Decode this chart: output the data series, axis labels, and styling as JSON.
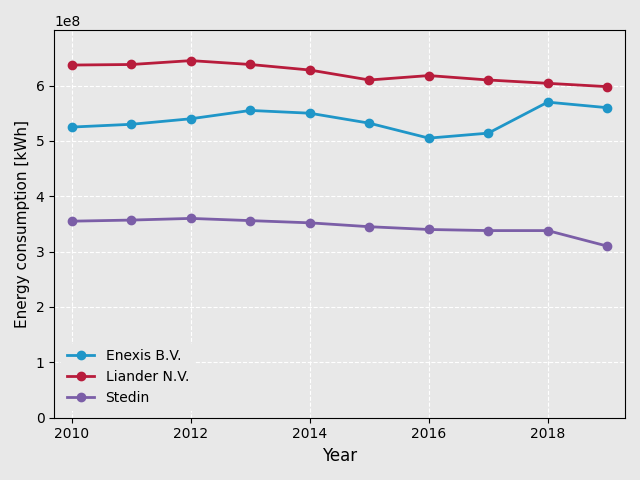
{
  "years": [
    2010,
    2011,
    2012,
    2013,
    2014,
    2015,
    2016,
    2017,
    2018,
    2019
  ],
  "enexis": [
    525000000.0,
    530000000.0,
    540000000.0,
    555000000.0,
    550000000.0,
    532000000.0,
    505000000.0,
    514000000.0,
    570000000.0,
    560000000.0
  ],
  "liander": [
    637000000.0,
    638000000.0,
    645000000.0,
    638000000.0,
    628000000.0,
    610000000.0,
    618000000.0,
    610000000.0,
    604000000.0,
    598000000.0
  ],
  "stedin": [
    355000000.0,
    357000000.0,
    360000000.0,
    356000000.0,
    352000000.0,
    345000000.0,
    340000000.0,
    338000000.0,
    338000000.0,
    310000000.0
  ],
  "enexis_color": "#1f96c8",
  "liander_color": "#b81c3c",
  "stedin_color": "#7b5ea7",
  "enexis_label": "Enexis B.V.",
  "liander_label": "Liander N.V.",
  "stedin_label": "Stedin",
  "xlabel": "Year",
  "ylabel": "Energy consumption [kWh]",
  "ylim": [
    0,
    700000000.0
  ],
  "yticks": [
    0,
    100000000.0,
    200000000.0,
    300000000.0,
    400000000.0,
    500000000.0,
    600000000.0
  ],
  "background_color": "#e8e8e8",
  "grid_color": "#ffffff",
  "marker": "o",
  "linewidth": 2.0,
  "markersize": 6,
  "legend_facecolor": "#e8e8e8"
}
